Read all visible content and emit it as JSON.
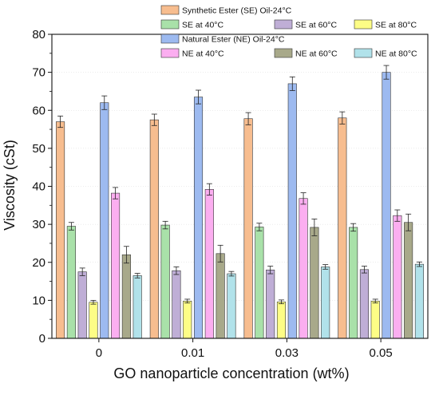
{
  "chart_data": {
    "type": "bar",
    "xlabel": "GO nanoparticle concentration (wt%)",
    "ylabel": "Viscosity (cSt)",
    "ylim": [
      0,
      80
    ],
    "yticks": [
      0,
      10,
      20,
      30,
      40,
      50,
      60,
      70,
      80
    ],
    "categories": [
      "0",
      "0.01",
      "0.03",
      "0.05"
    ],
    "grid": false,
    "legend_position": "top",
    "error_bars": true,
    "series": [
      {
        "name": "Synthetic Ester (SE) Oil-24°C",
        "color": "#f7bd8f",
        "values": [
          57.0,
          57.5,
          57.8,
          58.0
        ],
        "errors": [
          1.5,
          1.5,
          1.6,
          1.6
        ]
      },
      {
        "name": "SE at 40°C",
        "color": "#a9e1a9",
        "values": [
          29.5,
          29.8,
          29.3,
          29.2
        ],
        "errors": [
          1.0,
          1.0,
          1.0,
          1.0
        ]
      },
      {
        "name": "SE at 60°C",
        "color": "#bfaed6",
        "values": [
          17.5,
          17.8,
          18.0,
          18.1
        ],
        "errors": [
          1.0,
          1.0,
          1.0,
          0.9
        ]
      },
      {
        "name": "SE at 80°C",
        "color": "#fdfd86",
        "values": [
          9.5,
          9.8,
          9.6,
          9.8
        ],
        "errors": [
          0.5,
          0.5,
          0.5,
          0.5
        ]
      },
      {
        "name": "Natural Ester (NE) Oil-24°C",
        "color": "#9dbaf0",
        "values": [
          62.0,
          63.5,
          67.0,
          70.0
        ],
        "errors": [
          1.8,
          1.8,
          1.8,
          1.8
        ]
      },
      {
        "name": "NE at 40°C",
        "color": "#fbaef0",
        "values": [
          38.2,
          39.2,
          36.8,
          32.3
        ],
        "errors": [
          1.5,
          1.5,
          1.5,
          1.5
        ]
      },
      {
        "name": "NE at 60°C",
        "color": "#a8a98a",
        "values": [
          22.0,
          22.3,
          29.2,
          30.5
        ],
        "errors": [
          2.2,
          2.2,
          2.2,
          2.2
        ]
      },
      {
        "name": "NE at 80°C",
        "color": "#b1e2ea",
        "values": [
          16.5,
          17.0,
          18.8,
          19.5
        ],
        "errors": [
          0.6,
          0.6,
          0.6,
          0.6
        ]
      }
    ]
  }
}
